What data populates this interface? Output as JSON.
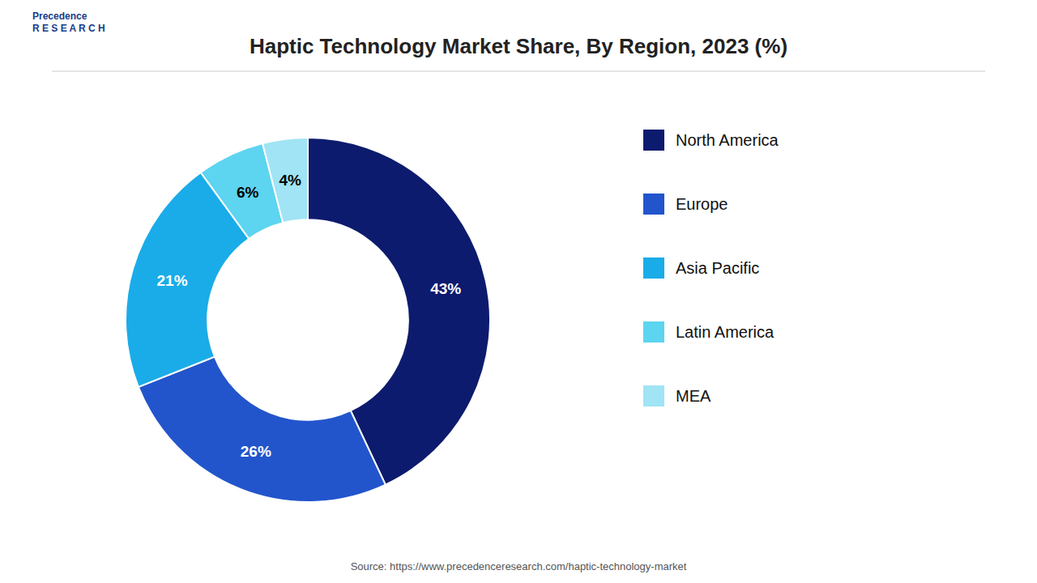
{
  "chart_data": {
    "type": "pie",
    "title": "Haptic Technology Market Share, By Region, 2023 (%)",
    "categories": [
      "North America",
      "Europe",
      "Asia Pacific",
      "Latin America",
      "MEA"
    ],
    "values": [
      43,
      26,
      21,
      6,
      4
    ],
    "value_labels": [
      "43%",
      "26%",
      "21%",
      "6%",
      "4%"
    ],
    "colors": [
      "#0d1b6e",
      "#2255cc",
      "#1aace8",
      "#5dd4f0",
      "#a0e4f5"
    ],
    "data_labels": true,
    "legend": "right",
    "annotations": [
      "Precedence\nR E S E A R C H",
      "Source: https://www.precedenceresearch.com/haptic-technology-market"
    ]
  }
}
